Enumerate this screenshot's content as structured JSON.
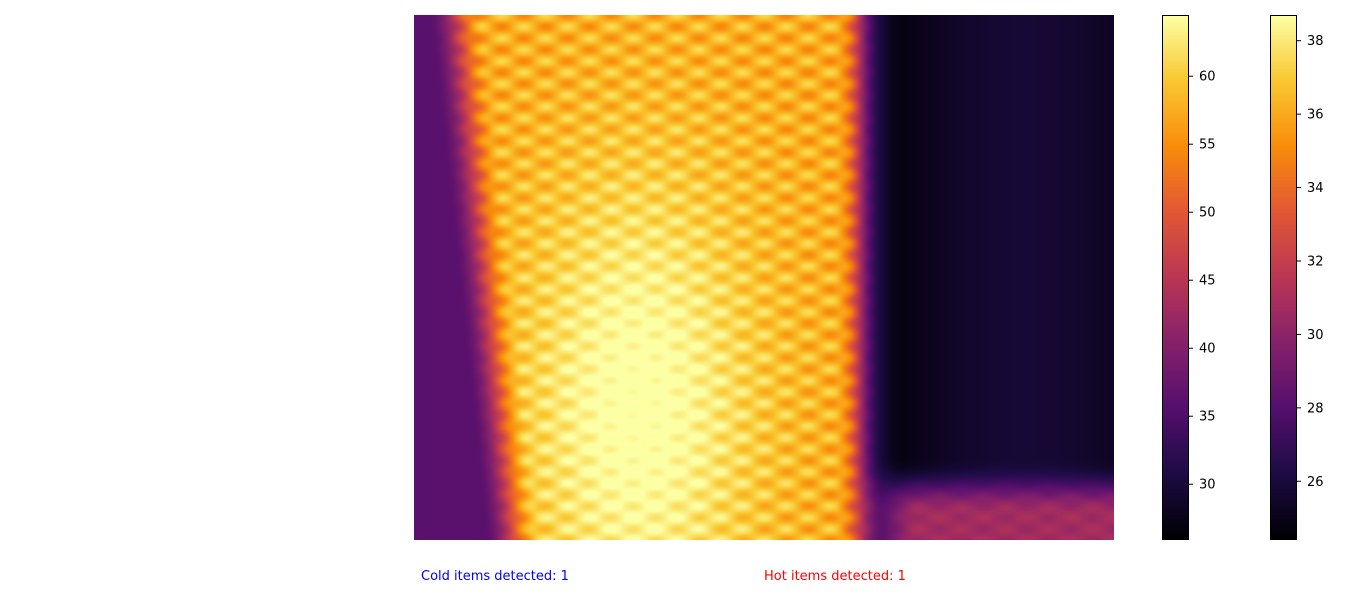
{
  "chart_data": {
    "type": "heatmap",
    "colormap": "inferno",
    "description_of_field": {
      "grid_cols": 20,
      "grid_rows": 15,
      "hot_column_range": [
        1,
        12
      ],
      "hot_core_peak": 64,
      "cold_region_columns": [
        14,
        20
      ],
      "cold_min": 26
    },
    "colorbars": [
      {
        "vmin": 25.9,
        "vmax": 64.5,
        "ticks": [
          30,
          35,
          40,
          45,
          50,
          55,
          60
        ]
      },
      {
        "vmin": 24.4,
        "vmax": 38.7,
        "ticks": [
          26,
          28,
          30,
          32,
          34,
          36,
          38
        ]
      }
    ]
  },
  "status": {
    "cold": "Cold items detected: 1",
    "hot": "Hot items detected: 1",
    "cold_color": "#0000ff",
    "hot_color": "#ff0000"
  }
}
